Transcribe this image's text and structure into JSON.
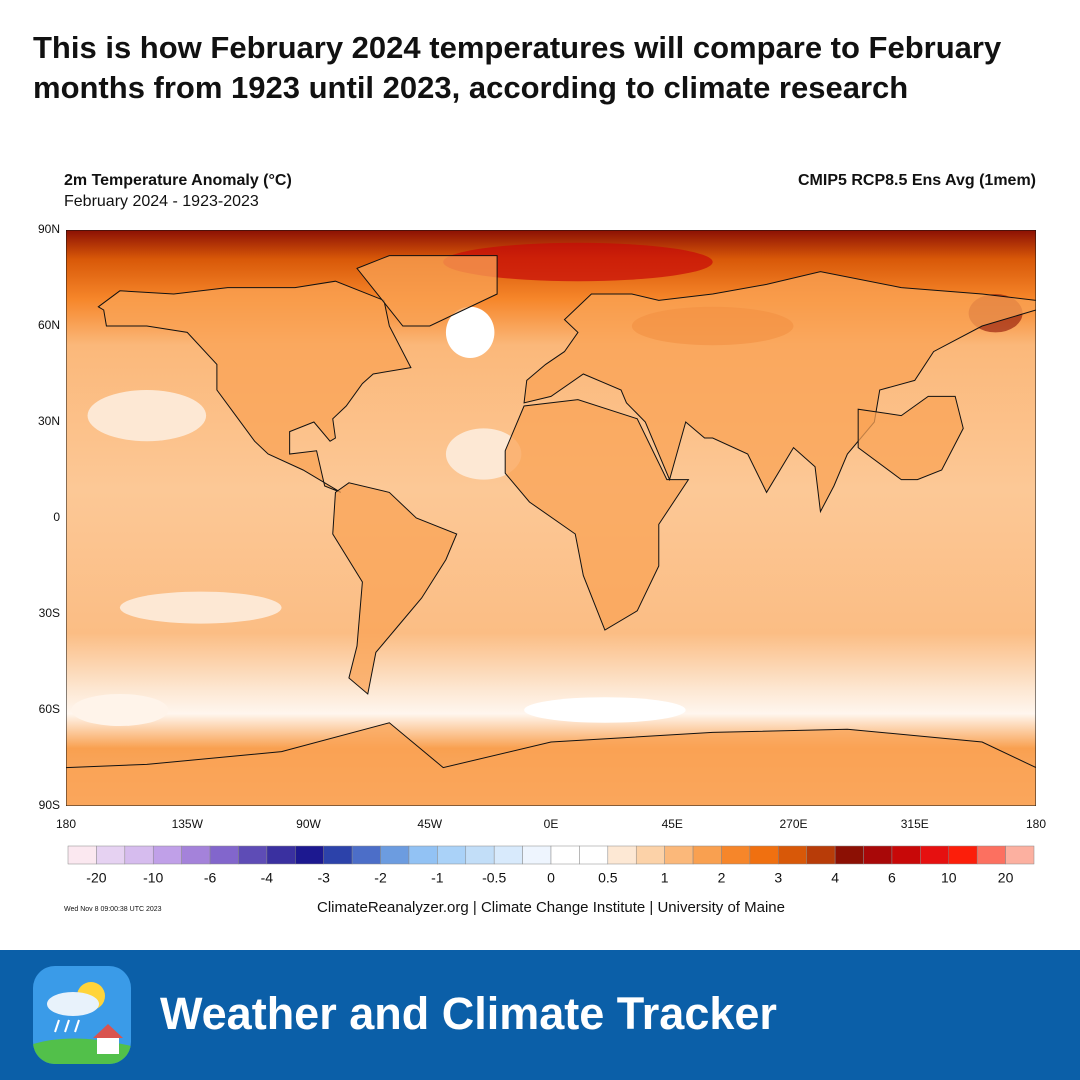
{
  "header": {
    "title": "This is how February 2024 temperatures will compare to February months from 1923 until 2023, according to climate research"
  },
  "map": {
    "title": "2m Temperature Anomaly (°C)",
    "subtitle": "February 2024 - 1923-2023",
    "source_label": "CMIP5 RCP8.5 Ens Avg (1mem)",
    "lat_labels": [
      "90N",
      "60N",
      "30N",
      "0",
      "30S",
      "60S",
      "90S"
    ],
    "lon_labels": [
      "180",
      "135W",
      "90W",
      "45W",
      "0E",
      "45E",
      "270E",
      "315E",
      "180"
    ],
    "timestamp": "Wed Nov  8 09:00:38 UTC 2023",
    "credits": "ClimateReanalyzer.org | Climate Change Institute | University of Maine"
  },
  "colorbar": {
    "colors": [
      "#fbe8f0",
      "#e6d2f2",
      "#d6bcee",
      "#c0a0e8",
      "#a482da",
      "#8266cc",
      "#5e4cb6",
      "#3a30a0",
      "#1c1890",
      "#2c42aa",
      "#4c6ec8",
      "#6c9ce0",
      "#92c2f4",
      "#aad2f8",
      "#c2def8",
      "#d8eafc",
      "#eef5fe",
      "#ffffff",
      "#ffffff",
      "#fde8d4",
      "#fcd2a8",
      "#fbb87a",
      "#f9a050",
      "#f6862a",
      "#f07010",
      "#d85808",
      "#b83c08",
      "#8c1004",
      "#a80808",
      "#c80808",
      "#e61010",
      "#fc1e0a",
      "#fc7060",
      "#fcb0a0"
    ],
    "labels": [
      "-20",
      "-10",
      "-6",
      "-4",
      "-3",
      "-2",
      "-1",
      "-0.5",
      "0",
      "0.5",
      "1",
      "2",
      "3",
      "4",
      "6",
      "10",
      "20"
    ]
  },
  "footer": {
    "brand": "Weather and Climate Tracker"
  }
}
